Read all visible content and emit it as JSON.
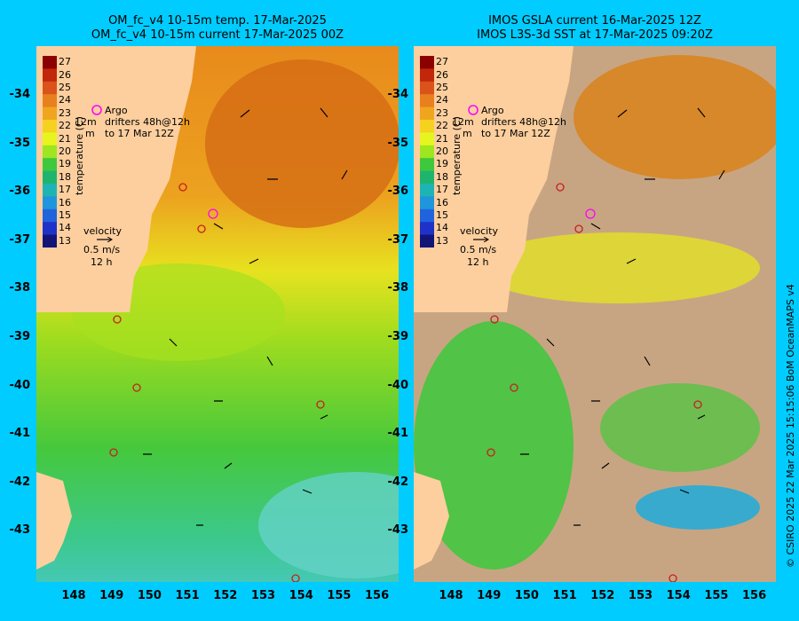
{
  "left_panel": {
    "title_line1": "OM_fc_v4  10-15m temp. 17-Mar-2025",
    "title_line2": "OM_fc_v4  10-15m current 17-Mar-2025 00Z"
  },
  "right_panel": {
    "title_line1": "IMOS GSLA current 16-Mar-2025 12Z",
    "title_line2": "IMOS L3S-3d SST at 17-Mar-2025 09:20Z"
  },
  "y_ticks": [
    "-34",
    "-35",
    "-36",
    "-37",
    "-38",
    "-39",
    "-40",
    "-41",
    "-42",
    "-43"
  ],
  "x_ticks": [
    "148",
    "149",
    "150",
    "151",
    "152",
    "153",
    "154",
    "155",
    "156"
  ],
  "colorbar": {
    "label": "temperature (C)",
    "ticks": [
      "27",
      "26",
      "25",
      "24",
      "23",
      "22",
      "21",
      "20",
      "19",
      "18",
      "17",
      "16",
      "15",
      "14",
      "13"
    ],
    "colors": [
      "#8b0000",
      "#c1270a",
      "#d9531a",
      "#e8801e",
      "#f0a51e",
      "#f5d21f",
      "#e6f51f",
      "#9ee61f",
      "#3dc83d",
      "#1fb46e",
      "#1fb4b4",
      "#1f96dc",
      "#1f64dc",
      "#1f32c8",
      "#141478"
    ]
  },
  "legend": {
    "argo": "Argo",
    "drifters": "drifters 48h@12h",
    "to_date": "to 17 Mar 12Z",
    "depth_label": "12m",
    "m_label": "m",
    "velocity": "velocity",
    "speed": "0.5 m/s",
    "duration": "12 h"
  },
  "credit": "© CSIRO 2025   22 Mar 2025 15:15:06 BoM OceanMAPS v4",
  "colors": {
    "background": "#00ccff",
    "land": "#fdcf9e",
    "no_data": "#c8a582",
    "argo_marker": "#ff00ff"
  }
}
